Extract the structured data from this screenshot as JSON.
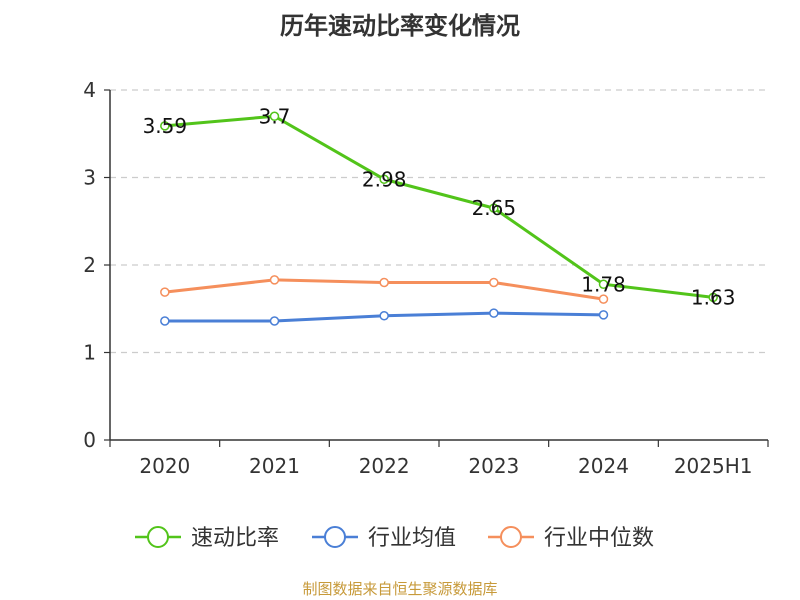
{
  "footer": "制图数据来自恒生聚源数据库",
  "chart_data": {
    "type": "line",
    "title": "历年速动比率变化情况",
    "xlabel": "",
    "ylabel": "",
    "categories": [
      "2020",
      "2021",
      "2022",
      "2023",
      "2024",
      "2025H1"
    ],
    "ylim": [
      0,
      4
    ],
    "yticks": [
      "0",
      "1",
      "2",
      "3",
      "4"
    ],
    "grid": true,
    "legend_position": "bottom",
    "series": [
      {
        "name": "速动比率",
        "color": "#52c41a",
        "values": [
          3.59,
          3.7,
          2.98,
          2.65,
          1.78,
          1.63
        ],
        "labels": [
          "3.59",
          "3.7",
          "2.98",
          "2.65",
          "1.78",
          "1.63"
        ]
      },
      {
        "name": "行业均值",
        "color": "#4a7fd6",
        "values": [
          1.36,
          1.36,
          1.42,
          1.45,
          1.43,
          null
        ]
      },
      {
        "name": "行业中位数",
        "color": "#f58f5c",
        "values": [
          1.69,
          1.83,
          1.8,
          1.8,
          1.61,
          null
        ]
      }
    ]
  }
}
